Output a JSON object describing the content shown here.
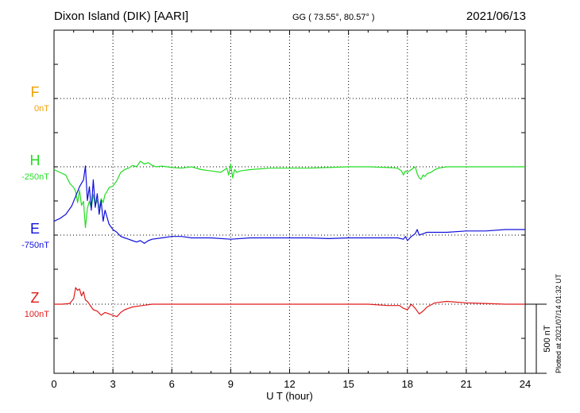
{
  "header": {
    "title": "Dixon Island (DIK)  [AARI]",
    "coords": "GG ( 73.55°,  80.57° )",
    "date": "2021/06/13"
  },
  "plotted_note": "Plotted at 2021/07/14 01:32 UT",
  "chart_data": {
    "type": "line",
    "xlabel": "U T (hour)",
    "xlim": [
      0,
      24
    ],
    "xticks": [
      "0",
      "3",
      "6",
      "9",
      "12",
      "15",
      "18",
      "21",
      "24"
    ],
    "scale_bar_label": "500 nT",
    "scale_bar_nT": 500,
    "colors": {
      "F": "#f0a000",
      "H": "#22dd22",
      "E": "#1010dd",
      "Z": "#e01a1a"
    },
    "series": [
      {
        "name": "F",
        "baseline": "0nT",
        "values": []
      },
      {
        "name": "H",
        "baseline": "-250nT",
        "x": [
          0,
          0.3,
          0.6,
          0.8,
          1.0,
          1.1,
          1.2,
          1.3,
          1.4,
          1.5,
          1.6,
          1.7,
          1.8,
          1.9,
          2.0,
          2.1,
          2.2,
          2.3,
          2.4,
          2.5,
          2.6,
          2.7,
          2.8,
          3.0,
          3.2,
          3.4,
          3.6,
          3.8,
          4.0,
          4.2,
          4.4,
          4.6,
          4.8,
          5.0,
          5.2,
          5.5,
          6.0,
          6.5,
          7.0,
          7.5,
          8.0,
          8.5,
          8.8,
          8.9,
          9.0,
          9.1,
          9.2,
          9.3,
          9.5,
          10,
          11,
          12,
          13,
          14,
          15,
          16,
          17,
          17.5,
          17.7,
          17.8,
          17.9,
          18.0,
          18.2,
          18.4,
          18.5,
          18.6,
          18.7,
          18.8,
          18.9,
          19.0,
          19.2,
          19.4,
          19.6,
          20,
          21,
          22,
          23,
          24
        ],
        "values": [
          -20,
          -40,
          -60,
          -120,
          -150,
          -180,
          -260,
          -170,
          -280,
          -250,
          -440,
          -300,
          -250,
          -300,
          -200,
          -280,
          -240,
          -300,
          -230,
          -260,
          -200,
          -180,
          -150,
          -140,
          -100,
          -40,
          -20,
          -10,
          10,
          0,
          40,
          20,
          30,
          10,
          0,
          5,
          -5,
          -10,
          0,
          -20,
          -30,
          -40,
          -10,
          -60,
          20,
          -80,
          -20,
          -40,
          -30,
          -20,
          -10,
          -10,
          -10,
          -5,
          0,
          0,
          -5,
          -10,
          -30,
          -60,
          -30,
          -40,
          -20,
          0,
          -50,
          -80,
          -90,
          -60,
          -70,
          -50,
          -40,
          -20,
          -10,
          0,
          0,
          0,
          0,
          0
        ]
      },
      {
        "name": "E",
        "baseline": "-750nT",
        "x": [
          0,
          0.3,
          0.6,
          0.9,
          1.1,
          1.3,
          1.5,
          1.6,
          1.7,
          1.8,
          1.9,
          2.0,
          2.1,
          2.2,
          2.3,
          2.4,
          2.5,
          2.6,
          2.8,
          3.0,
          3.2,
          3.4,
          3.6,
          3.8,
          4.0,
          4.2,
          4.4,
          4.6,
          4.8,
          5.0,
          5.5,
          6.0,
          6.5,
          7.0,
          8.0,
          9.0,
          10,
          11,
          12,
          13,
          14,
          15,
          16,
          17,
          17.5,
          17.8,
          17.9,
          18.0,
          18.2,
          18.4,
          18.5,
          18.6,
          18.8,
          19.0,
          19.5,
          20,
          21,
          22,
          23,
          24
        ],
        "values": [
          100,
          120,
          150,
          210,
          280,
          350,
          400,
          500,
          250,
          350,
          180,
          400,
          200,
          300,
          150,
          250,
          100,
          180,
          80,
          40,
          20,
          -10,
          -20,
          -30,
          -40,
          -50,
          -40,
          -60,
          -40,
          -30,
          -20,
          -10,
          -10,
          -20,
          -20,
          -30,
          -20,
          -20,
          -20,
          -20,
          -25,
          -20,
          -20,
          -20,
          -20,
          -30,
          -10,
          -40,
          -10,
          10,
          40,
          0,
          10,
          20,
          20,
          20,
          30,
          30,
          40,
          40
        ]
      },
      {
        "name": "Z",
        "baseline": "100nT",
        "x": [
          0,
          0.4,
          0.8,
          1.0,
          1.1,
          1.2,
          1.3,
          1.4,
          1.5,
          1.6,
          1.7,
          1.8,
          1.9,
          2.0,
          2.2,
          2.4,
          2.6,
          2.8,
          3.0,
          3.2,
          3.4,
          3.6,
          3.8,
          4.0,
          4.5,
          5.0,
          6,
          7,
          8,
          9,
          10,
          12,
          14,
          16,
          17,
          17.6,
          17.8,
          18.0,
          18.2,
          18.4,
          18.6,
          18.8,
          19.0,
          19.4,
          20,
          21,
          22,
          23,
          24
        ],
        "values": [
          0,
          0,
          5,
          40,
          120,
          100,
          110,
          60,
          90,
          30,
          20,
          0,
          -20,
          -40,
          -50,
          -80,
          -60,
          -70,
          -80,
          -90,
          -60,
          -40,
          -30,
          -20,
          -10,
          0,
          0,
          0,
          0,
          0,
          0,
          0,
          0,
          0,
          -10,
          -10,
          -30,
          -40,
          0,
          -30,
          -70,
          -50,
          -20,
          10,
          20,
          10,
          5,
          0,
          0
        ]
      }
    ]
  }
}
